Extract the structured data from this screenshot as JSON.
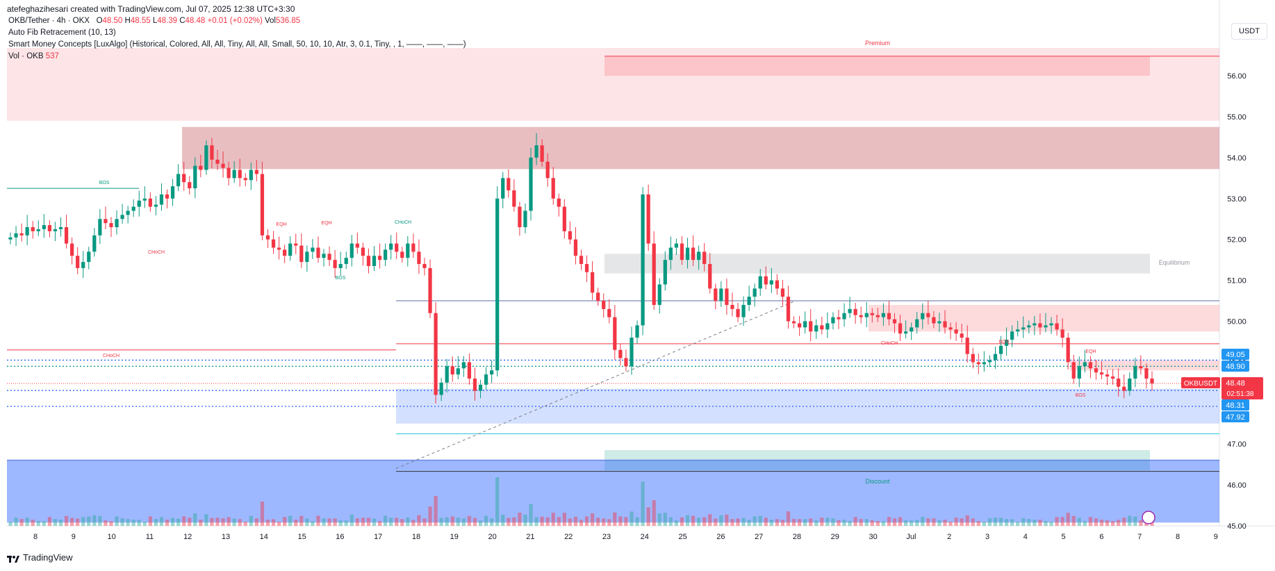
{
  "credit": "atefeghazihesari created with TradingView.com, Jul 07, 2025 12:38 UTC+3:30",
  "header": {
    "symbol": "OKB/Tether · 4h · OKX",
    "o_label": "O",
    "o": "48.50",
    "h_label": "H",
    "h": "48.55",
    "l_label": "L",
    "l": "48.39",
    "c_label": "C",
    "c": "48.48",
    "change": "+0.01 (+0.02%)",
    "vol_label": "Vol",
    "vol": "536.85",
    "indicator1": "Auto Fib Retracement (10, 13)",
    "indicator2": "Smart Money Concepts [LuxAlgo] (Historical, Colored, All, All, Tiny, All, All, Small, 50, 10, 10, Atr, 3, 0.1, Tiny, , 1, ——, ——, ——)",
    "indicator3_label": "Vol · OKB",
    "indicator3_value": "537"
  },
  "currency": "USDT",
  "brand": "TradingView",
  "colors": {
    "up": "#089981",
    "down": "#f23645",
    "blue": "#2962ff",
    "label_blue": "#2196f3"
  },
  "chart_data": {
    "type": "candlestick",
    "symbol": "OKBUSDT",
    "ylim": [
      45.0,
      56.7
    ],
    "y_ticks": [
      "56.00",
      "55.00",
      "54.00",
      "53.00",
      "52.00",
      "51.00",
      "50.00",
      "49.00",
      "48.00",
      "47.00",
      "46.00",
      "45.00"
    ],
    "x_ticks": [
      "8",
      "9",
      "10",
      "11",
      "12",
      "13",
      "14",
      "15",
      "16",
      "17",
      "18",
      "19",
      "20",
      "21",
      "22",
      "23",
      "24",
      "25",
      "26",
      "27",
      "28",
      "29",
      "30",
      "Jul",
      "2",
      "3",
      "4",
      "5",
      "6",
      "7",
      "8",
      "9"
    ],
    "price_labels": [
      {
        "value": "49.05",
        "type": "blue"
      },
      {
        "value": "48.90",
        "type": "blue"
      },
      {
        "value": "48.48",
        "type": "last"
      },
      {
        "value": "48.31",
        "type": "blue"
      },
      {
        "value": "47.92",
        "type": "blue"
      }
    ],
    "last_price_tag": {
      "symbol": "OKBUSDT",
      "price": "48.48",
      "countdown": "02:51:38"
    },
    "zone_labels": [
      "Premium",
      "Equilibrium",
      "Discount"
    ],
    "structure_labels": [
      "BOS",
      "EQH",
      "EQH",
      "CHoCH",
      "CHoCH",
      "BOS",
      "CHoCH",
      "CHoCH",
      "BOS",
      "EQH",
      "BOS"
    ],
    "closes": [
      52.05,
      52.15,
      52.1,
      52.3,
      52.2,
      52.25,
      52.35,
      52.2,
      52.25,
      52.3,
      51.9,
      51.6,
      51.3,
      51.45,
      51.7,
      52.1,
      52.5,
      52.4,
      52.3,
      52.5,
      52.6,
      52.7,
      52.8,
      52.95,
      53.0,
      52.8,
      52.85,
      53.1,
      53.0,
      53.3,
      53.6,
      53.4,
      53.25,
      53.8,
      53.7,
      54.3,
      53.95,
      53.85,
      53.75,
      53.5,
      53.7,
      53.5,
      53.45,
      53.7,
      53.6,
      52.1,
      52.0,
      51.8,
      51.75,
      51.6,
      51.9,
      51.85,
      51.45,
      51.7,
      51.8,
      51.55,
      51.65,
      51.5,
      51.3,
      51.4,
      51.55,
      51.9,
      51.8,
      51.6,
      51.35,
      51.6,
      51.5,
      51.75,
      51.9,
      51.7,
      51.55,
      51.9,
      51.7,
      51.4,
      51.3,
      50.2,
      48.2,
      48.5,
      48.9,
      48.7,
      48.85,
      49.0,
      48.6,
      48.3,
      48.45,
      48.7,
      48.8,
      53.0,
      53.5,
      53.2,
      52.8,
      52.3,
      52.7,
      54.0,
      54.3,
      53.9,
      53.5,
      53.0,
      52.8,
      52.2,
      52.0,
      51.6,
      51.4,
      51.2,
      50.7,
      50.5,
      50.3,
      50.1,
      49.3,
      49.1,
      48.9,
      49.6,
      49.9,
      53.1,
      51.9,
      50.4,
      50.9,
      51.5,
      51.8,
      51.9,
      51.5,
      51.8,
      51.5,
      51.7,
      51.4,
      50.8,
      50.5,
      50.8,
      50.4,
      50.3,
      50.1,
      50.4,
      50.6,
      50.8,
      51.1,
      50.9,
      51.0,
      50.8,
      50.6,
      50.0,
      49.95,
      49.85,
      50.0,
      49.75,
      49.9,
      49.8,
      49.95,
      50.1,
      50.05,
      50.2,
      50.3,
      50.15,
      50.1,
      50.2,
      50.15,
      50.1,
      50.2,
      50.05,
      49.95,
      49.7,
      49.75,
      49.85,
      50.05,
      50.2,
      50.1,
      49.95,
      50.0,
      49.85,
      49.8,
      49.7,
      49.6,
      49.2,
      49.0,
      48.95,
      49.0,
      49.05,
      49.2,
      49.4,
      49.55,
      49.75,
      49.8,
      49.85,
      49.9,
      49.95,
      49.85,
      49.9,
      49.95,
      49.8,
      49.6,
      49.0,
      48.6,
      48.9,
      49.0,
      48.85,
      48.75,
      48.7,
      48.65,
      48.6,
      48.4,
      48.3,
      48.6,
      48.9,
      48.85,
      48.6,
      48.48
    ]
  }
}
